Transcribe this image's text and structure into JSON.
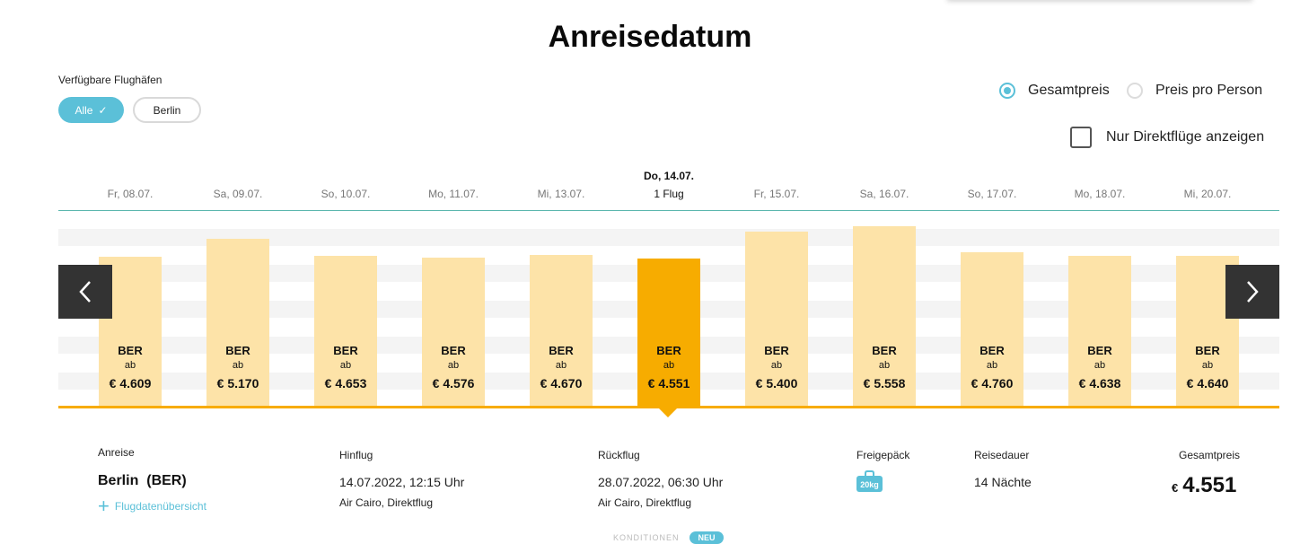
{
  "title": "Anreisedatum",
  "airport_filter": {
    "label": "Verfügbare Flughäfen",
    "options": [
      "Alle",
      "Berlin"
    ],
    "selected": "Alle"
  },
  "price_mode": {
    "options": [
      "Gesamtpreis",
      "Preis pro Person"
    ],
    "selected": "Gesamtpreis"
  },
  "direct_only": {
    "label": "Nur Direktflüge anzeigen",
    "checked": false
  },
  "calendar": {
    "selected_date_title": "Do, 14.07.",
    "selected_index": 5,
    "dates": [
      {
        "label": "Fr, 08.07.",
        "code": "BER",
        "ab": "ab",
        "price": "€ 4.609",
        "value": 4609
      },
      {
        "label": "Sa, 09.07.",
        "code": "BER",
        "ab": "ab",
        "price": "€ 5.170",
        "value": 5170
      },
      {
        "label": "So, 10.07.",
        "code": "BER",
        "ab": "ab",
        "price": "€ 4.653",
        "value": 4653
      },
      {
        "label": "Mo, 11.07.",
        "code": "BER",
        "ab": "ab",
        "price": "€ 4.576",
        "value": 4576
      },
      {
        "label": "Mi, 13.07.",
        "code": "BER",
        "ab": "ab",
        "price": "€ 4.670",
        "value": 4670
      },
      {
        "label": "1 Flug",
        "code": "BER",
        "ab": "ab",
        "price": "€ 4.551",
        "value": 4551
      },
      {
        "label": "Fr, 15.07.",
        "code": "BER",
        "ab": "ab",
        "price": "€ 5.400",
        "value": 5400
      },
      {
        "label": "Sa, 16.07.",
        "code": "BER",
        "ab": "ab",
        "price": "€ 5.558",
        "value": 5558
      },
      {
        "label": "So, 17.07.",
        "code": "BER",
        "ab": "ab",
        "price": "€ 4.760",
        "value": 4760
      },
      {
        "label": "Mo, 18.07.",
        "code": "BER",
        "ab": "ab",
        "price": "€ 4.638",
        "value": 4638
      },
      {
        "label": "Mi, 20.07.",
        "code": "BER",
        "ab": "ab",
        "price": "€ 4.640",
        "value": 4640
      }
    ]
  },
  "colors": {
    "accent": "#5bc0d8",
    "bar": "#fde3a8",
    "bar_selected": "#f7ac00",
    "nav_button": "#333333"
  },
  "details": {
    "anreise_label": "Anreise",
    "anreise_value": "Berlin  (BER)",
    "flugdaten_link": "Flugdatenübersicht",
    "hinflug_label": "Hinflug",
    "hinflug_date": "14.07.2022, 12:15 Uhr",
    "hinflug_airline": "Air Cairo, Direktflug",
    "rueckflug_label": "Rückflug",
    "rueckflug_date": "28.07.2022, 06:30 Uhr",
    "rueckflug_airline": "Air Cairo, Direktflug",
    "gepaeck_label": "Freigepäck",
    "gepaeck_value": "20kg",
    "reisedauer_label": "Reisedauer",
    "reisedauer_value": "14 Nächte",
    "gesamtpreis_label": "Gesamtpreis",
    "currency": "€",
    "gesamtpreis_value": "4.551"
  },
  "footer": {
    "konditionen": "KONDITIONEN",
    "neu_badge": "NEU"
  },
  "icons": {
    "prev": "chevron-left-icon",
    "next": "chevron-right-icon",
    "check": "check-icon",
    "plus": "plus-icon",
    "baggage": "baggage-icon"
  }
}
